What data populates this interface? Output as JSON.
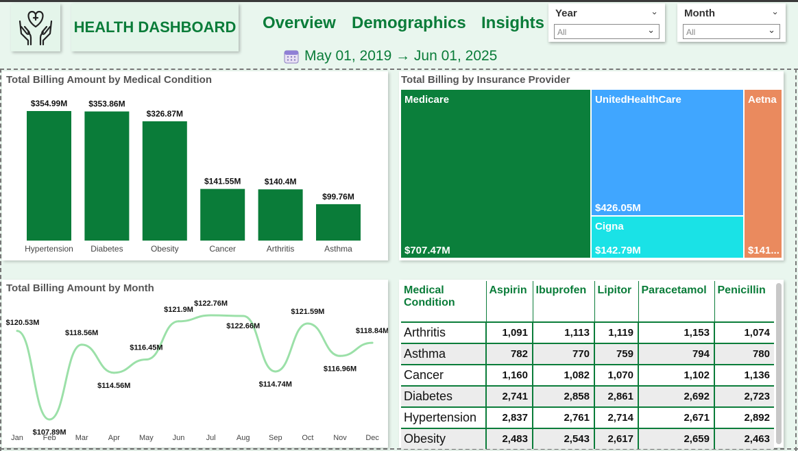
{
  "header": {
    "title": "HEALTH DASHBOARD",
    "nav": [
      "Overview",
      "Demographics",
      "Insights"
    ],
    "date_range": "May 01, 2019 → Jun 01, 2025",
    "logo_icon": "heart-hands-icon",
    "calendar_icon": "calendar-icon"
  },
  "slicers": {
    "year": {
      "label": "Year",
      "value": "All"
    },
    "month": {
      "label": "Month",
      "value": "All"
    }
  },
  "colors": {
    "brand": "#0a7c39",
    "medicare": "#0b7f3b",
    "unitedhealthcare": "#40a6ff",
    "cigna": "#1ae2e6",
    "aetna": "#ea8a5e",
    "line": "#9be0a8"
  },
  "bar_panel": {
    "title": "Total Billing Amount by Medical Condition"
  },
  "treemap_panel": {
    "title": "Total Billing by Insurance Provider"
  },
  "line_panel": {
    "title": "Total Billing Amount by Month"
  },
  "chart_data": [
    {
      "type": "bar",
      "title": "Total Billing Amount by Medical Condition",
      "categories": [
        "Hypertension",
        "Diabetes",
        "Obesity",
        "Cancer",
        "Arthritis",
        "Asthma"
      ],
      "values": [
        354.99,
        353.86,
        326.87,
        141.55,
        140.4,
        99.76
      ],
      "labels": [
        "$354.99M",
        "$353.86M",
        "$326.87M",
        "$141.55M",
        "$140.4M",
        "$99.76M"
      ],
      "unit": "$M",
      "ylim": [
        0,
        380
      ]
    },
    {
      "type": "treemap",
      "title": "Total Billing by Insurance Provider",
      "items": [
        {
          "name": "Medicare",
          "value": 707.47,
          "label": "$707.47M"
        },
        {
          "name": "UnitedHealthCare",
          "value": 426.05,
          "label": "$426.05M"
        },
        {
          "name": "Cigna",
          "value": 142.79,
          "label": "$142.79M"
        },
        {
          "name": "Aetna",
          "value": 141.0,
          "label": "$141..."
        }
      ]
    },
    {
      "type": "line",
      "title": "Total Billing Amount by Month",
      "categories": [
        "Jan",
        "Feb",
        "Mar",
        "Apr",
        "May",
        "Jun",
        "Jul",
        "Aug",
        "Sep",
        "Oct",
        "Nov",
        "Dec"
      ],
      "values": [
        120.53,
        107.89,
        118.56,
        114.56,
        116.45,
        121.9,
        122.76,
        122.66,
        114.74,
        121.59,
        116.96,
        118.84
      ],
      "labels": [
        "$120.53M",
        "$107.89M",
        "$118.56M",
        "$114.56M",
        "$116.45M",
        "$121.9M",
        "$122.76M",
        "$122.66M",
        "$114.74M",
        "$121.59M",
        "$116.96M",
        "$118.84M"
      ],
      "ylim": [
        105,
        125
      ],
      "smooth": true
    }
  ],
  "matrix": {
    "headers": [
      "Medical Condition",
      "Aspirin",
      "Ibuprofen",
      "Lipitor",
      "Paracetamol",
      "Penicillin"
    ],
    "rows": [
      {
        "condition": "Arthritis",
        "values": [
          "1,091",
          "1,113",
          "1,119",
          "1,153",
          "1,074"
        ]
      },
      {
        "condition": "Asthma",
        "values": [
          "782",
          "770",
          "759",
          "794",
          "780"
        ]
      },
      {
        "condition": "Cancer",
        "values": [
          "1,160",
          "1,082",
          "1,070",
          "1,102",
          "1,136"
        ]
      },
      {
        "condition": "Diabetes",
        "values": [
          "2,741",
          "2,858",
          "2,861",
          "2,692",
          "2,723"
        ]
      },
      {
        "condition": "Hypertension",
        "values": [
          "2,837",
          "2,761",
          "2,714",
          "2,671",
          "2,892"
        ]
      },
      {
        "condition": "Obesity",
        "values": [
          "2,483",
          "2,543",
          "2,617",
          "2,659",
          "2,463"
        ]
      }
    ]
  }
}
